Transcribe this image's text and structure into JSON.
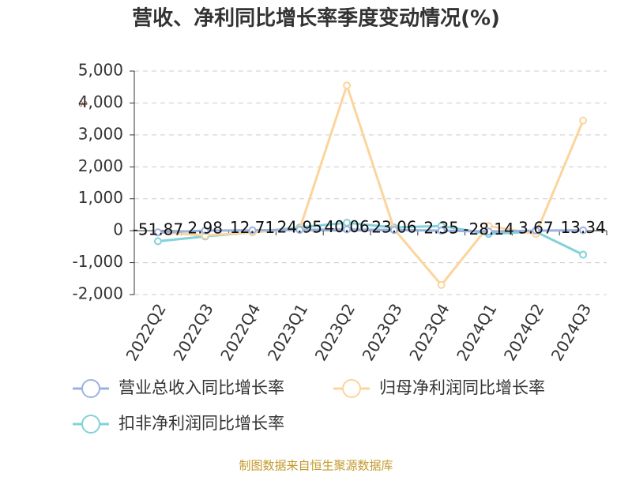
{
  "chart_data": {
    "type": "line",
    "title": "营收、净利同比增长率季度变动情况(%)",
    "y_label": "%",
    "categories": [
      "2022Q2",
      "2022Q3",
      "2022Q4",
      "2023Q1",
      "2023Q2",
      "2023Q3",
      "2023Q4",
      "2024Q1",
      "2024Q2",
      "2024Q3"
    ],
    "series": [
      {
        "name": "营业总收入同比增长率",
        "color": "#9bb2e0",
        "values": [
          -51.87,
          2.98,
          12.71,
          24.95,
          40.06,
          23.06,
          2.35,
          -28.14,
          3.67,
          13.34
        ],
        "data_labels": true
      },
      {
        "name": "归母净利润同比增长率",
        "color": "#fcd49c",
        "values": [
          -50,
          -150,
          -50,
          50,
          4550,
          50,
          -1700,
          150,
          -100,
          3450
        ]
      },
      {
        "name": "扣非净利润同比增长率",
        "color": "#82d2d8",
        "values": [
          -330,
          -180,
          -50,
          100,
          250,
          100,
          150,
          -100,
          -30,
          -750
        ]
      }
    ],
    "ylim": [
      -2000,
      5000
    ],
    "yticks": [
      {
        "value": -2000,
        "label": "-2,000"
      },
      {
        "value": -1000,
        "label": "-1,000"
      },
      0,
      {
        "value": 1000,
        "label": "1,000"
      },
      {
        "value": 2000,
        "label": "2,000"
      },
      {
        "value": 3000,
        "label": "3,000"
      },
      {
        "value": 4000,
        "label": "4,000"
      },
      {
        "value": 5000,
        "label": "5,000"
      }
    ],
    "grid": true,
    "source": "制图数据来自恒生聚源数据库"
  }
}
